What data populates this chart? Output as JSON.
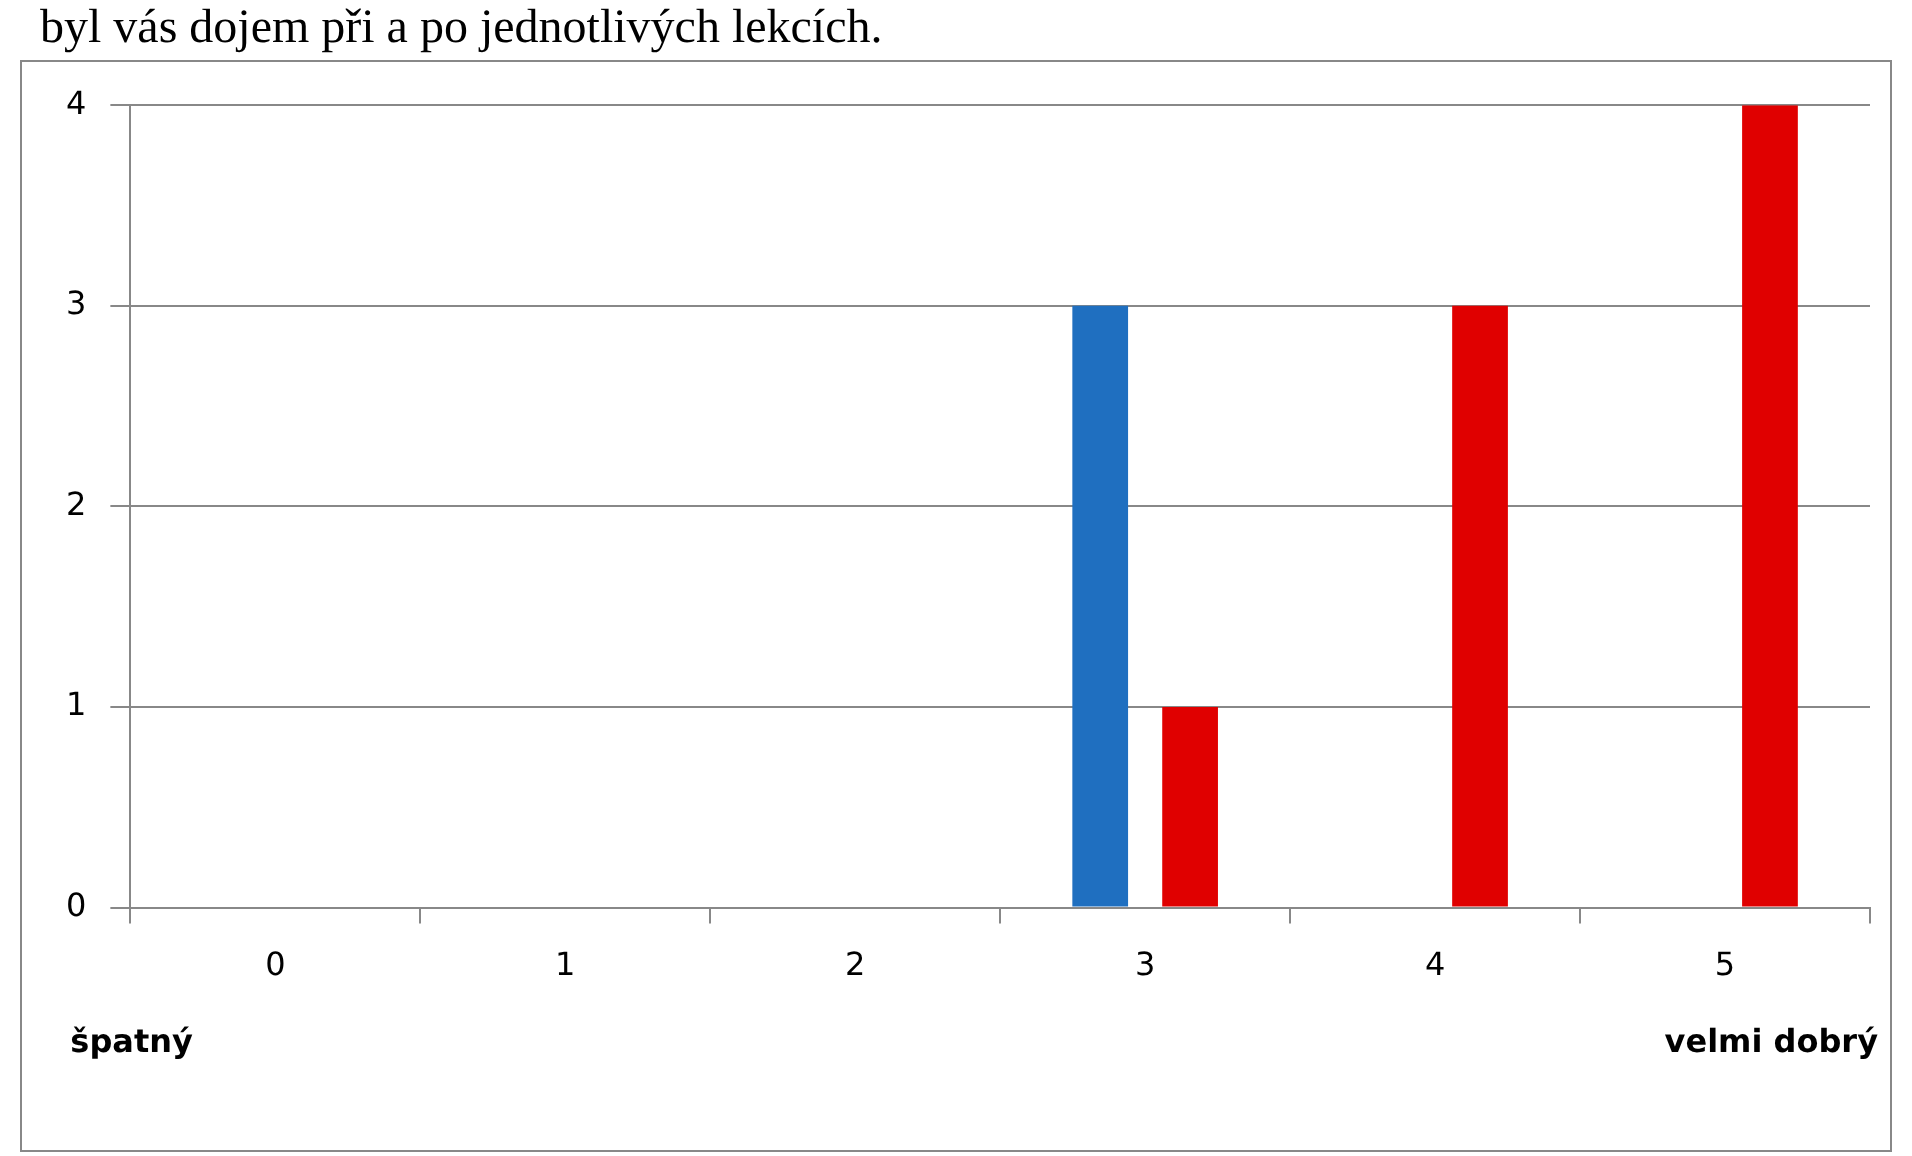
{
  "chart_data": {
    "type": "bar",
    "title": "byl vás dojem při a po jednotlivých lekcích.",
    "categories": [
      "0",
      "1",
      "2",
      "3",
      "4",
      "5"
    ],
    "series": [
      {
        "color": "#1f6fc0",
        "values": [
          0,
          0,
          0,
          3,
          0,
          0
        ]
      },
      {
        "color": "#e00000",
        "values": [
          0,
          0,
          0,
          1,
          3,
          4
        ]
      }
    ],
    "ylim": [
      0,
      4
    ],
    "yticks": [
      0,
      1,
      2,
      3,
      4
    ],
    "grid": "y",
    "legend": false,
    "annotations": [
      "špatný",
      "velmi dobrý"
    ]
  }
}
